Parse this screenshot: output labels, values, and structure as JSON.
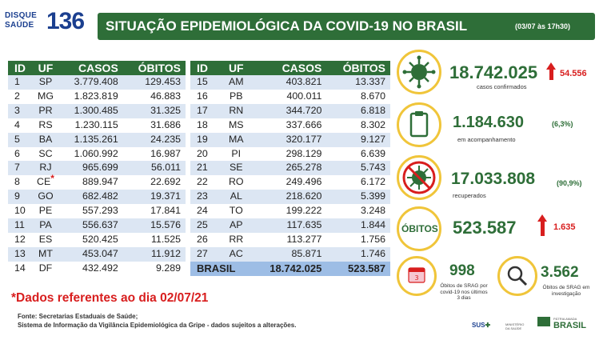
{
  "header": {
    "logo_top": "DISQUE",
    "logo_bottom": "SAÚDE",
    "logo_number": "136",
    "title": "SITUAÇÃO EPIDEMIOLÓGICA DA COVID-19 NO BRASIL",
    "date": "(03/07 às 17h30)"
  },
  "table": {
    "headers": [
      "ID",
      "UF",
      "CASOS",
      "ÓBITOS"
    ],
    "left_rows": [
      {
        "id": "1",
        "uf": "SP",
        "casos": "3.779.408",
        "obitos": "129.453"
      },
      {
        "id": "2",
        "uf": "MG",
        "casos": "1.823.819",
        "obitos": "46.883"
      },
      {
        "id": "3",
        "uf": "PR",
        "casos": "1.300.485",
        "obitos": "31.325"
      },
      {
        "id": "4",
        "uf": "RS",
        "casos": "1.230.115",
        "obitos": "31.686"
      },
      {
        "id": "5",
        "uf": "BA",
        "casos": "1.135.261",
        "obitos": "24.235"
      },
      {
        "id": "6",
        "uf": "SC",
        "casos": "1.060.992",
        "obitos": "16.987"
      },
      {
        "id": "7",
        "uf": "RJ",
        "casos": "965.699",
        "obitos": "56.011"
      },
      {
        "id": "8",
        "uf": "CE",
        "casos": "889.947",
        "obitos": "22.692"
      },
      {
        "id": "9",
        "uf": "GO",
        "casos": "682.482",
        "obitos": "19.371"
      },
      {
        "id": "10",
        "uf": "PE",
        "casos": "557.293",
        "obitos": "17.841"
      },
      {
        "id": "11",
        "uf": "PA",
        "casos": "556.637",
        "obitos": "15.576"
      },
      {
        "id": "12",
        "uf": "ES",
        "casos": "520.425",
        "obitos": "11.525"
      },
      {
        "id": "13",
        "uf": "MT",
        "casos": "453.047",
        "obitos": "11.912"
      },
      {
        "id": "14",
        "uf": "DF",
        "casos": "432.492",
        "obitos": "9.289"
      }
    ],
    "right_rows": [
      {
        "id": "15",
        "uf": "AM",
        "casos": "403.821",
        "obitos": "13.337"
      },
      {
        "id": "16",
        "uf": "PB",
        "casos": "400.011",
        "obitos": "8.670"
      },
      {
        "id": "17",
        "uf": "RN",
        "casos": "344.720",
        "obitos": "6.818"
      },
      {
        "id": "18",
        "uf": "MS",
        "casos": "337.666",
        "obitos": "8.302"
      },
      {
        "id": "19",
        "uf": "MA",
        "casos": "320.177",
        "obitos": "9.127"
      },
      {
        "id": "20",
        "uf": "PI",
        "casos": "298.129",
        "obitos": "6.639"
      },
      {
        "id": "21",
        "uf": "SE",
        "casos": "265.278",
        "obitos": "5.743"
      },
      {
        "id": "22",
        "uf": "RO",
        "casos": "249.496",
        "obitos": "6.172"
      },
      {
        "id": "23",
        "uf": "AL",
        "casos": "218.620",
        "obitos": "5.399"
      },
      {
        "id": "24",
        "uf": "TO",
        "casos": "199.222",
        "obitos": "3.248"
      },
      {
        "id": "25",
        "uf": "AP",
        "casos": "117.635",
        "obitos": "1.844"
      },
      {
        "id": "26",
        "uf": "RR",
        "casos": "113.277",
        "obitos": "1.756"
      },
      {
        "id": "27",
        "uf": "AC",
        "casos": "85.871",
        "obitos": "1.746"
      }
    ],
    "total": {
      "label": "BRASIL",
      "casos": "18.742.025",
      "obitos": "523.587"
    },
    "asterisk": "*"
  },
  "note": "*Dados referentes ao dia 02/07/21",
  "source_line1": "Fonte: Secretarias Estaduais de Saúde;",
  "source_line2": "Sistema de Informação da Vigilância Epidemiológica da Gripe - dados sujeitos a alterações.",
  "stats": {
    "confirmed": {
      "value": "18.742.025",
      "label": "casos confirmados",
      "increase": "54.556",
      "icon": "virus-icon"
    },
    "monitoring": {
      "value": "1.184.630",
      "pct": "(6,3%)",
      "label": "em acompanhamento",
      "icon": "clipboard-icon"
    },
    "recovered": {
      "value": "17.033.808",
      "pct": "(90,9%)",
      "label": "recuperados",
      "icon": "crossed-virus-icon"
    },
    "deaths": {
      "label": "ÓBITOS",
      "value": "523.587",
      "increase": "1.635"
    },
    "srag": {
      "value": "998",
      "label_line1": "Óbitos de SRAG por",
      "label_line2": "covid-19 nos últimos",
      "label_line3": "3 dias",
      "icon": "calendar-icon"
    },
    "investigation": {
      "value": "3.562",
      "label_line1": "Óbitos de SRAG em",
      "label_line2": "investigação",
      "icon": "magnifier-icon"
    }
  },
  "footer": {
    "sus": "SUS",
    "ministry": "MINISTÉRIO DA SAÚDE",
    "brasil": "BRASIL",
    "brasil_top": "PÁTRIA AMADA"
  },
  "colors": {
    "green": "#2e6e38",
    "red": "#d81e1e",
    "yellow": "#f0c53a",
    "blue": "#1b3f8f"
  }
}
